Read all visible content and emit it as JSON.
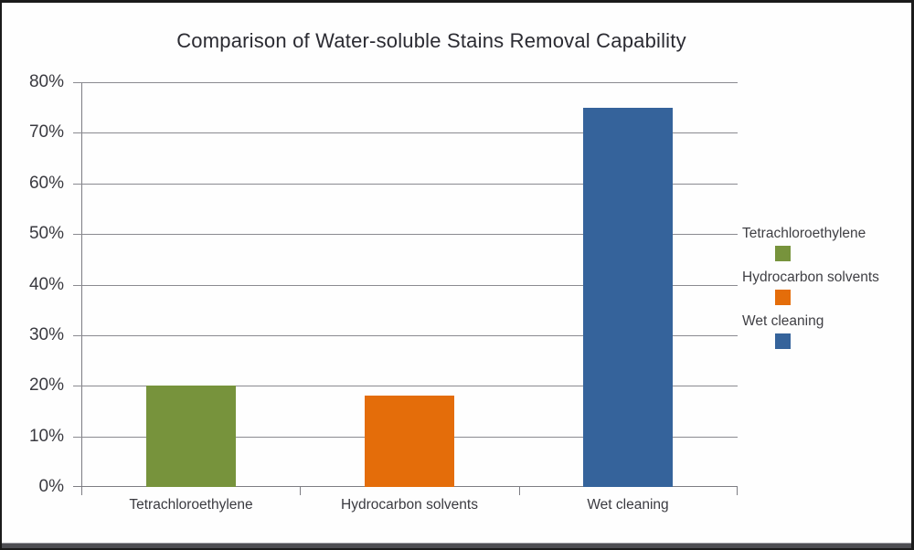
{
  "chart_data": {
    "type": "bar",
    "title": "Comparison of Water-soluble Stains Removal Capability",
    "categories": [
      "Tetrachloroethylene",
      "Hydrocarbon solvents",
      "Wet cleaning"
    ],
    "values": [
      20,
      18,
      75
    ],
    "value_unit": "%",
    "colors": [
      "#77933C",
      "#E46D0A",
      "#35639B"
    ],
    "xlabel": "",
    "ylabel": "",
    "ylim": [
      0,
      80
    ],
    "ytick_step": 10,
    "ytick_labels": [
      "0%",
      "10%",
      "20%",
      "30%",
      "40%",
      "50%",
      "60%",
      "70%",
      "80%"
    ],
    "grid": true,
    "legend_position": "right",
    "legend": [
      {
        "label": "Tetrachloroethylene",
        "color": "#77933C"
      },
      {
        "label": "Hydrocarbon solvents",
        "color": "#E46D0A"
      },
      {
        "label": "Wet cleaning",
        "color": "#35639B"
      }
    ]
  },
  "style": {
    "grid_color": "#8a8a90",
    "axis_color": "#7d7d83",
    "bar_colors": [
      "#77933C",
      "#E46D0A",
      "#35639B"
    ]
  }
}
